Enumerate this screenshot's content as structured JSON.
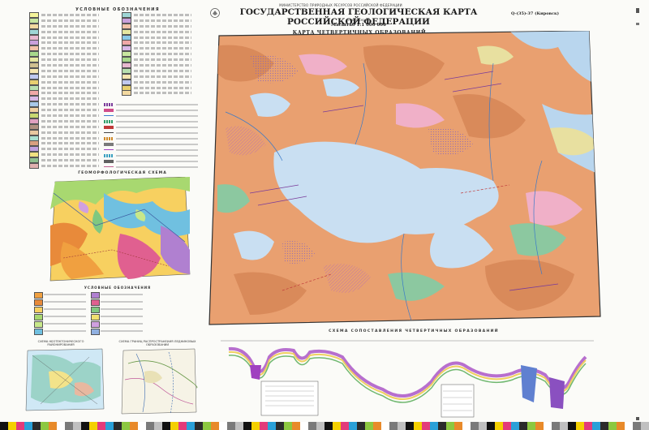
{
  "header": {
    "ministry": "МИНИСТЕРСТВО ПРИРОДНЫХ РЕСУРСОВ РОССИЙСКОЙ ФЕДЕРАЦИИ",
    "title": "ГОСУДАРСТВЕННАЯ ГЕОЛОГИЧЕСКАЯ КАРТА РОССИЙСКОЙ ФЕДЕРАЦИИ",
    "series": "(новая серия)",
    "scale": "Масштаб 1:1 000 000",
    "sheet_code": "Q-(35)-37 (Кировск)",
    "map_title": "КАРТА ЧЕТВЕРТИЧНЫХ ОБРАЗОВАНИЙ"
  },
  "legend": {
    "title": "УСЛОВНЫЕ ОБОЗНАЧЕНИЯ",
    "swatches_left": [
      "#f4f49a",
      "#c8e6a0",
      "#f3d9a0",
      "#9fd6d6",
      "#e8b8d0",
      "#c9a0dc",
      "#f2c2a8",
      "#a8d88c",
      "#e6e6a0",
      "#d0c090",
      "#f7e6b0",
      "#c0c8f0",
      "#e8d070",
      "#b8e0b0",
      "#f0a8a8",
      "#d8b8e8",
      "#a8c8e8",
      "#f0d0a0",
      "#c8d870",
      "#e0a0c0",
      "#b09080",
      "#e8c8a0",
      "#a8e0d0",
      "#d8a080",
      "#c0a0e0",
      "#f0e080",
      "#90c090",
      "#e0b0b0",
      "#d0e0a0",
      "#b8a8d0",
      "#f0c0d8",
      "#a0b8d8"
    ],
    "swatches_right": [
      "#9fd6d6",
      "#c9a0dc",
      "#f2c2a8",
      "#e6e6a0",
      "#8ac8e8",
      "#f0a8a8",
      "#d8b8e8",
      "#c8e6a0",
      "#a8d88c",
      "#e8b8d0",
      "#b8e0b0",
      "#f7e6b0",
      "#c0c8f0",
      "#e8d070",
      "#f3d9a0",
      "#8aa0d8",
      "#e0a0c0",
      "#c8d870",
      "#d0c090",
      "#a8e0d0",
      "#c0a0e0",
      "#f0e080",
      "#e8c8a0",
      "#b09080",
      "#90c090",
      "#f0d0a0",
      "#d0e0a0",
      "#e0b0b0",
      "#a0b8d8",
      "#b8a8d0",
      "#f0c0d8",
      "#f4f49a"
    ],
    "symbol_colors": [
      "#7a3b9a",
      "#d04c8a",
      "#3b7bd0",
      "#2f9e6a",
      "#c03a3a",
      "#444444",
      "#d08a2a",
      "#7a7a7a",
      "#a040c0",
      "#3aa0c0",
      "#606060",
      "#c06090"
    ]
  },
  "geomorph": {
    "title": "ГЕОМОРФОЛОГИЧЕСКАЯ СХЕМА",
    "legend_title": "УСЛОВНЫЕ ОБОЗНАЧЕНИЯ",
    "swatches": [
      "#f0a040",
      "#e88a3a",
      "#f7d060",
      "#a8d870",
      "#c8e88a",
      "#70c0e0",
      "#b080d0",
      "#e06090",
      "#80c880",
      "#f0e070",
      "#d0a0e0",
      "#90b0e0"
    ]
  },
  "insets": {
    "inset1_title": "СХЕМА НЕОТЕКТОНИЧЕСКОГО РАЙОНИРОВАНИЯ",
    "inset2_title": "СХЕМА ГРАНИЦ РАСПРОСТРАНЕНИЯ ЛЕДНИКОВЫХ ОБРАЗОВАНИЙ"
  },
  "section": {
    "title": "СХЕМА СОПОСТАВЛЕНИЯ ЧЕТВЕРТИЧНЫХ ОБРАЗОВАНИЙ"
  },
  "colors": {
    "sea": "#b9d6ee",
    "lake": "#c9dff2",
    "base_orange": "#e9a070",
    "moraine": "#d98a5a",
    "peat": "#f0b0c8",
    "fluvial": "#8cc8a0",
    "glacial": "#7a60c8",
    "marine": "#e8e0a0",
    "frame": "#333333"
  }
}
